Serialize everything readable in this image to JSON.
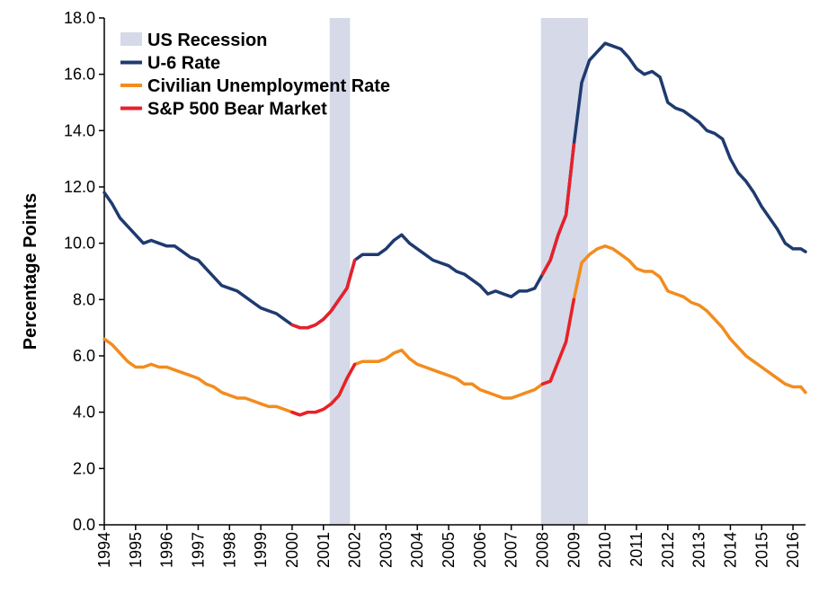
{
  "chart_data": {
    "type": "line",
    "title": "",
    "xlabel": "",
    "ylabel": "Percentage Points",
    "ylim": [
      0,
      18
    ],
    "yticks": [
      "0.0",
      "2.0",
      "4.0",
      "6.0",
      "8.0",
      "10.0",
      "12.0",
      "14.0",
      "16.0",
      "18.0"
    ],
    "xlim": [
      1994.0,
      2016.4
    ],
    "xticks": [
      "1994",
      "1995",
      "1996",
      "1997",
      "1998",
      "1999",
      "2000",
      "2001",
      "2002",
      "2003",
      "2004",
      "2005",
      "2006",
      "2007",
      "2008",
      "2009",
      "2010",
      "2011",
      "2012",
      "2013",
      "2014",
      "2015",
      "2016"
    ],
    "legend": {
      "placement": "top-left",
      "entries": [
        {
          "label": "US Recession",
          "color": "#d5d9e8",
          "kind": "box"
        },
        {
          "label": "U-6 Rate",
          "color": "#1f3a6f",
          "kind": "line"
        },
        {
          "label": "Civilian Unemployment Rate",
          "color": "#f28c1e",
          "kind": "line"
        },
        {
          "label": "S&P 500 Bear Market",
          "color": "#e8202a",
          "kind": "line"
        }
      ]
    },
    "recessions": [
      {
        "start": 2001.2,
        "end": 2001.85
      },
      {
        "start": 2007.95,
        "end": 2009.45
      }
    ],
    "bear_markets": [
      {
        "start": 2000.0,
        "end": 2002.0
      },
      {
        "start": 2007.8,
        "end": 2009.2
      }
    ],
    "series": [
      {
        "name": "U-6 Rate",
        "color": "#1f3a6f",
        "x": [
          1994.0,
          1994.25,
          1994.5,
          1994.75,
          1995.0,
          1995.25,
          1995.5,
          1995.75,
          1996.0,
          1996.25,
          1996.5,
          1996.75,
          1997.0,
          1997.25,
          1997.5,
          1997.75,
          1998.0,
          1998.25,
          1998.5,
          1998.75,
          1999.0,
          1999.25,
          1999.5,
          1999.75,
          2000.0,
          2000.25,
          2000.5,
          2000.75,
          2001.0,
          2001.25,
          2001.5,
          2001.75,
          2002.0,
          2002.25,
          2002.5,
          2002.75,
          2003.0,
          2003.25,
          2003.5,
          2003.75,
          2004.0,
          2004.25,
          2004.5,
          2004.75,
          2005.0,
          2005.25,
          2005.5,
          2005.75,
          2006.0,
          2006.25,
          2006.5,
          2006.75,
          2007.0,
          2007.25,
          2007.5,
          2007.75,
          2008.0,
          2008.25,
          2008.5,
          2008.75,
          2009.0,
          2009.25,
          2009.5,
          2009.75,
          2010.0,
          2010.25,
          2010.5,
          2010.75,
          2011.0,
          2011.25,
          2011.5,
          2011.75,
          2012.0,
          2012.25,
          2012.5,
          2012.75,
          2013.0,
          2013.25,
          2013.5,
          2013.75,
          2014.0,
          2014.25,
          2014.5,
          2014.75,
          2015.0,
          2015.25,
          2015.5,
          2015.75,
          2016.0,
          2016.25,
          2016.4
        ],
        "values": [
          11.8,
          11.4,
          10.9,
          10.6,
          10.3,
          10.0,
          10.1,
          10.0,
          9.9,
          9.9,
          9.7,
          9.5,
          9.4,
          9.1,
          8.8,
          8.5,
          8.4,
          8.3,
          8.1,
          7.9,
          7.7,
          7.6,
          7.5,
          7.3,
          7.1,
          7.0,
          7.0,
          7.1,
          7.3,
          7.6,
          8.0,
          8.4,
          9.4,
          9.6,
          9.6,
          9.6,
          9.8,
          10.1,
          10.3,
          10.0,
          9.8,
          9.6,
          9.4,
          9.3,
          9.2,
          9.0,
          8.9,
          8.7,
          8.5,
          8.2,
          8.3,
          8.2,
          8.1,
          8.3,
          8.3,
          8.4,
          8.9,
          9.4,
          10.3,
          11.0,
          13.5,
          15.7,
          16.5,
          16.8,
          17.1,
          17.0,
          16.9,
          16.6,
          16.2,
          16.0,
          16.1,
          15.9,
          15.0,
          14.8,
          14.7,
          14.5,
          14.3,
          14.0,
          13.9,
          13.7,
          13.0,
          12.5,
          12.2,
          11.8,
          11.3,
          10.9,
          10.5,
          10.0,
          9.8,
          9.8,
          9.7
        ]
      },
      {
        "name": "Civilian Unemployment Rate",
        "color": "#f28c1e",
        "x": [
          1994.0,
          1994.25,
          1994.5,
          1994.75,
          1995.0,
          1995.25,
          1995.5,
          1995.75,
          1996.0,
          1996.25,
          1996.5,
          1996.75,
          1997.0,
          1997.25,
          1997.5,
          1997.75,
          1998.0,
          1998.25,
          1998.5,
          1998.75,
          1999.0,
          1999.25,
          1999.5,
          1999.75,
          2000.0,
          2000.25,
          2000.5,
          2000.75,
          2001.0,
          2001.25,
          2001.5,
          2001.75,
          2002.0,
          2002.25,
          2002.5,
          2002.75,
          2003.0,
          2003.25,
          2003.5,
          2003.75,
          2004.0,
          2004.25,
          2004.5,
          2004.75,
          2005.0,
          2005.25,
          2005.5,
          2005.75,
          2006.0,
          2006.25,
          2006.5,
          2006.75,
          2007.0,
          2007.25,
          2007.5,
          2007.75,
          2008.0,
          2008.25,
          2008.5,
          2008.75,
          2009.0,
          2009.25,
          2009.5,
          2009.75,
          2010.0,
          2010.25,
          2010.5,
          2010.75,
          2011.0,
          2011.25,
          2011.5,
          2011.75,
          2012.0,
          2012.25,
          2012.5,
          2012.75,
          2013.0,
          2013.25,
          2013.5,
          2013.75,
          2014.0,
          2014.25,
          2014.5,
          2014.75,
          2015.0,
          2015.25,
          2015.5,
          2015.75,
          2016.0,
          2016.25,
          2016.4
        ],
        "values": [
          6.6,
          6.4,
          6.1,
          5.8,
          5.6,
          5.6,
          5.7,
          5.6,
          5.6,
          5.5,
          5.4,
          5.3,
          5.2,
          5.0,
          4.9,
          4.7,
          4.6,
          4.5,
          4.5,
          4.4,
          4.3,
          4.2,
          4.2,
          4.1,
          4.0,
          3.9,
          4.0,
          4.0,
          4.1,
          4.3,
          4.6,
          5.2,
          5.7,
          5.8,
          5.8,
          5.8,
          5.9,
          6.1,
          6.2,
          5.9,
          5.7,
          5.6,
          5.5,
          5.4,
          5.3,
          5.2,
          5.0,
          5.0,
          4.8,
          4.7,
          4.6,
          4.5,
          4.5,
          4.6,
          4.7,
          4.8,
          5.0,
          5.1,
          5.8,
          6.5,
          8.0,
          9.3,
          9.6,
          9.8,
          9.9,
          9.8,
          9.6,
          9.4,
          9.1,
          9.0,
          9.0,
          8.8,
          8.3,
          8.2,
          8.1,
          7.9,
          7.8,
          7.6,
          7.3,
          7.0,
          6.6,
          6.3,
          6.0,
          5.8,
          5.6,
          5.4,
          5.2,
          5.0,
          4.9,
          4.9,
          4.7
        ]
      }
    ]
  }
}
